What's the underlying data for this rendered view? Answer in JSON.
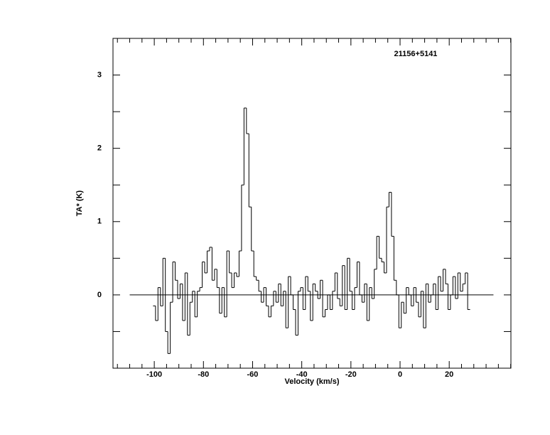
{
  "chart_data": {
    "type": "step",
    "title": "21156+5141",
    "x_label": "Velocity (km/s)",
    "y_label": "TA* (K)",
    "xlim": [
      -116.8,
      45.1
    ],
    "ylim": [
      -1,
      3.5
    ],
    "xticks": [
      -100,
      -80,
      -60,
      -40,
      -20,
      0,
      20
    ],
    "x_minor_ticks": [
      -115,
      -110,
      -105,
      -95,
      -90,
      -85,
      -75,
      -70,
      -65,
      -55,
      -50,
      -45,
      -35,
      -30,
      -25,
      -15,
      -10,
      -5,
      5,
      10,
      15,
      25,
      30,
      35,
      40,
      45
    ],
    "yticks": [
      0,
      1,
      2,
      3
    ],
    "y_minor_ticks": [
      -0.5,
      0.5,
      1.5,
      2.5
    ],
    "baseline": {
      "y": 0,
      "x": [
        -110,
        38
      ]
    },
    "color": "#000000",
    "x": [
      -100,
      -99,
      -98,
      -97,
      -96,
      -95,
      -94,
      -93,
      -92,
      -91,
      -90,
      -89,
      -88,
      -87,
      -86,
      -85,
      -84,
      -83,
      -82,
      -81,
      -80,
      -79,
      -78,
      -77,
      -76,
      -75,
      -74,
      -73,
      -72,
      -71,
      -70,
      -69,
      -68,
      -67,
      -66,
      -65,
      -64,
      -63,
      -62,
      -61,
      -60,
      -59,
      -58,
      -57,
      -56,
      -55,
      -54,
      -53,
      -52,
      -51,
      -50,
      -49,
      -48,
      -47,
      -46,
      -45,
      -44,
      -43,
      -42,
      -41,
      -40,
      -39,
      -38,
      -37,
      -36,
      -35,
      -34,
      -33,
      -32,
      -31,
      -30,
      -29,
      -28,
      -27,
      -26,
      -25,
      -24,
      -23,
      -22,
      -21,
      -20,
      -19,
      -18,
      -17,
      -16,
      -15,
      -14,
      -13,
      -12,
      -11,
      -10,
      -9,
      -8,
      -7,
      -6,
      -5,
      -4,
      -3,
      -2,
      -1,
      0,
      1,
      2,
      3,
      4,
      5,
      6,
      7,
      8,
      9,
      10,
      11,
      12,
      13,
      14,
      15,
      16,
      17,
      18,
      19,
      20,
      21,
      22,
      23,
      24,
      25,
      26,
      27,
      28
    ],
    "values": [
      -0.15,
      -0.35,
      0.1,
      -0.15,
      0.5,
      -0.5,
      -0.8,
      -0.1,
      0.45,
      0.2,
      -0.05,
      0.15,
      -0.35,
      0.3,
      -0.55,
      -0.1,
      0.05,
      -0.3,
      0.05,
      0.1,
      0.45,
      0.3,
      0.6,
      0.65,
      0.2,
      0.35,
      0.1,
      -0.25,
      0.1,
      -0.3,
      0.6,
      0.3,
      0.1,
      0.3,
      0.25,
      0.6,
      1.5,
      2.55,
      2.2,
      1.2,
      0.6,
      0.25,
      0.2,
      0.05,
      -0.1,
      0.1,
      -0.15,
      -0.3,
      -0.15,
      0.05,
      -0.1,
      0.15,
      -0.15,
      0.05,
      -0.45,
      0.25,
      0.0,
      -0.2,
      -0.55,
      0.05,
      0.1,
      -0.2,
      0.25,
      0.05,
      -0.35,
      0.15,
      0.05,
      -0.05,
      0.2,
      -0.3,
      -0.2,
      0.0,
      -0.2,
      0.05,
      0.3,
      -0.05,
      -0.15,
      0.4,
      -0.2,
      0.5,
      0.05,
      -0.2,
      0.1,
      0.45,
      0.0,
      -0.1,
      0.15,
      -0.35,
      0.1,
      -0.05,
      0.35,
      0.8,
      0.5,
      0.45,
      0.3,
      1.2,
      1.4,
      0.8,
      0.2,
      0.0,
      -0.45,
      -0.1,
      -0.25,
      0.1,
      0.0,
      -0.15,
      0.1,
      -0.1,
      -0.3,
      0.05,
      -0.45,
      0.15,
      -0.1,
      0.0,
      0.15,
      -0.2,
      0.25,
      0.05,
      0.35,
      0.15,
      -0.2,
      0.0,
      0.25,
      -0.05,
      0.3,
      0.05,
      0.15,
      0.3,
      -0.2
    ]
  }
}
